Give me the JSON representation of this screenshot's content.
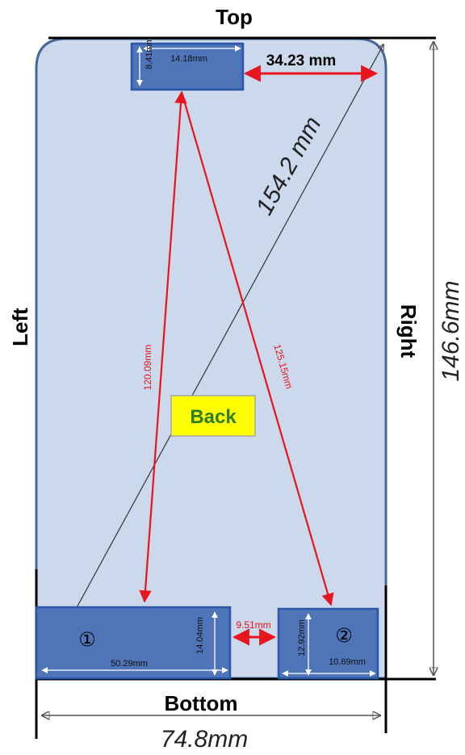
{
  "labels": {
    "top": "Top",
    "bottom": "Bottom",
    "left": "Left",
    "right": "Right",
    "back": "Back"
  },
  "dimensions": {
    "overall_width": "74.8mm",
    "overall_height": "146.6mm",
    "diagonal": "154.2 mm",
    "top_gap": "34.23 mm",
    "top_rect_width": "14.18mm",
    "top_rect_height": "8.41mm",
    "rect1_width": "50.29mm",
    "rect1_height": "14.04mm",
    "rect2_width": "10.69mm",
    "rect2_height": "12.92mm",
    "gap_between_rects": "9.51mm",
    "distance_top_to_1": "120.09mm",
    "distance_top_to_2": "125.15mm"
  },
  "markers": {
    "rect1": "①",
    "rect2": "②"
  },
  "colors": {
    "body_fill": "#ccd8ec",
    "body_stroke": "#46679a",
    "rect_fill": "#4f74b8",
    "rect_stroke": "#2a58a8",
    "red": "#e8141e",
    "back_fill": "#ffff00"
  }
}
